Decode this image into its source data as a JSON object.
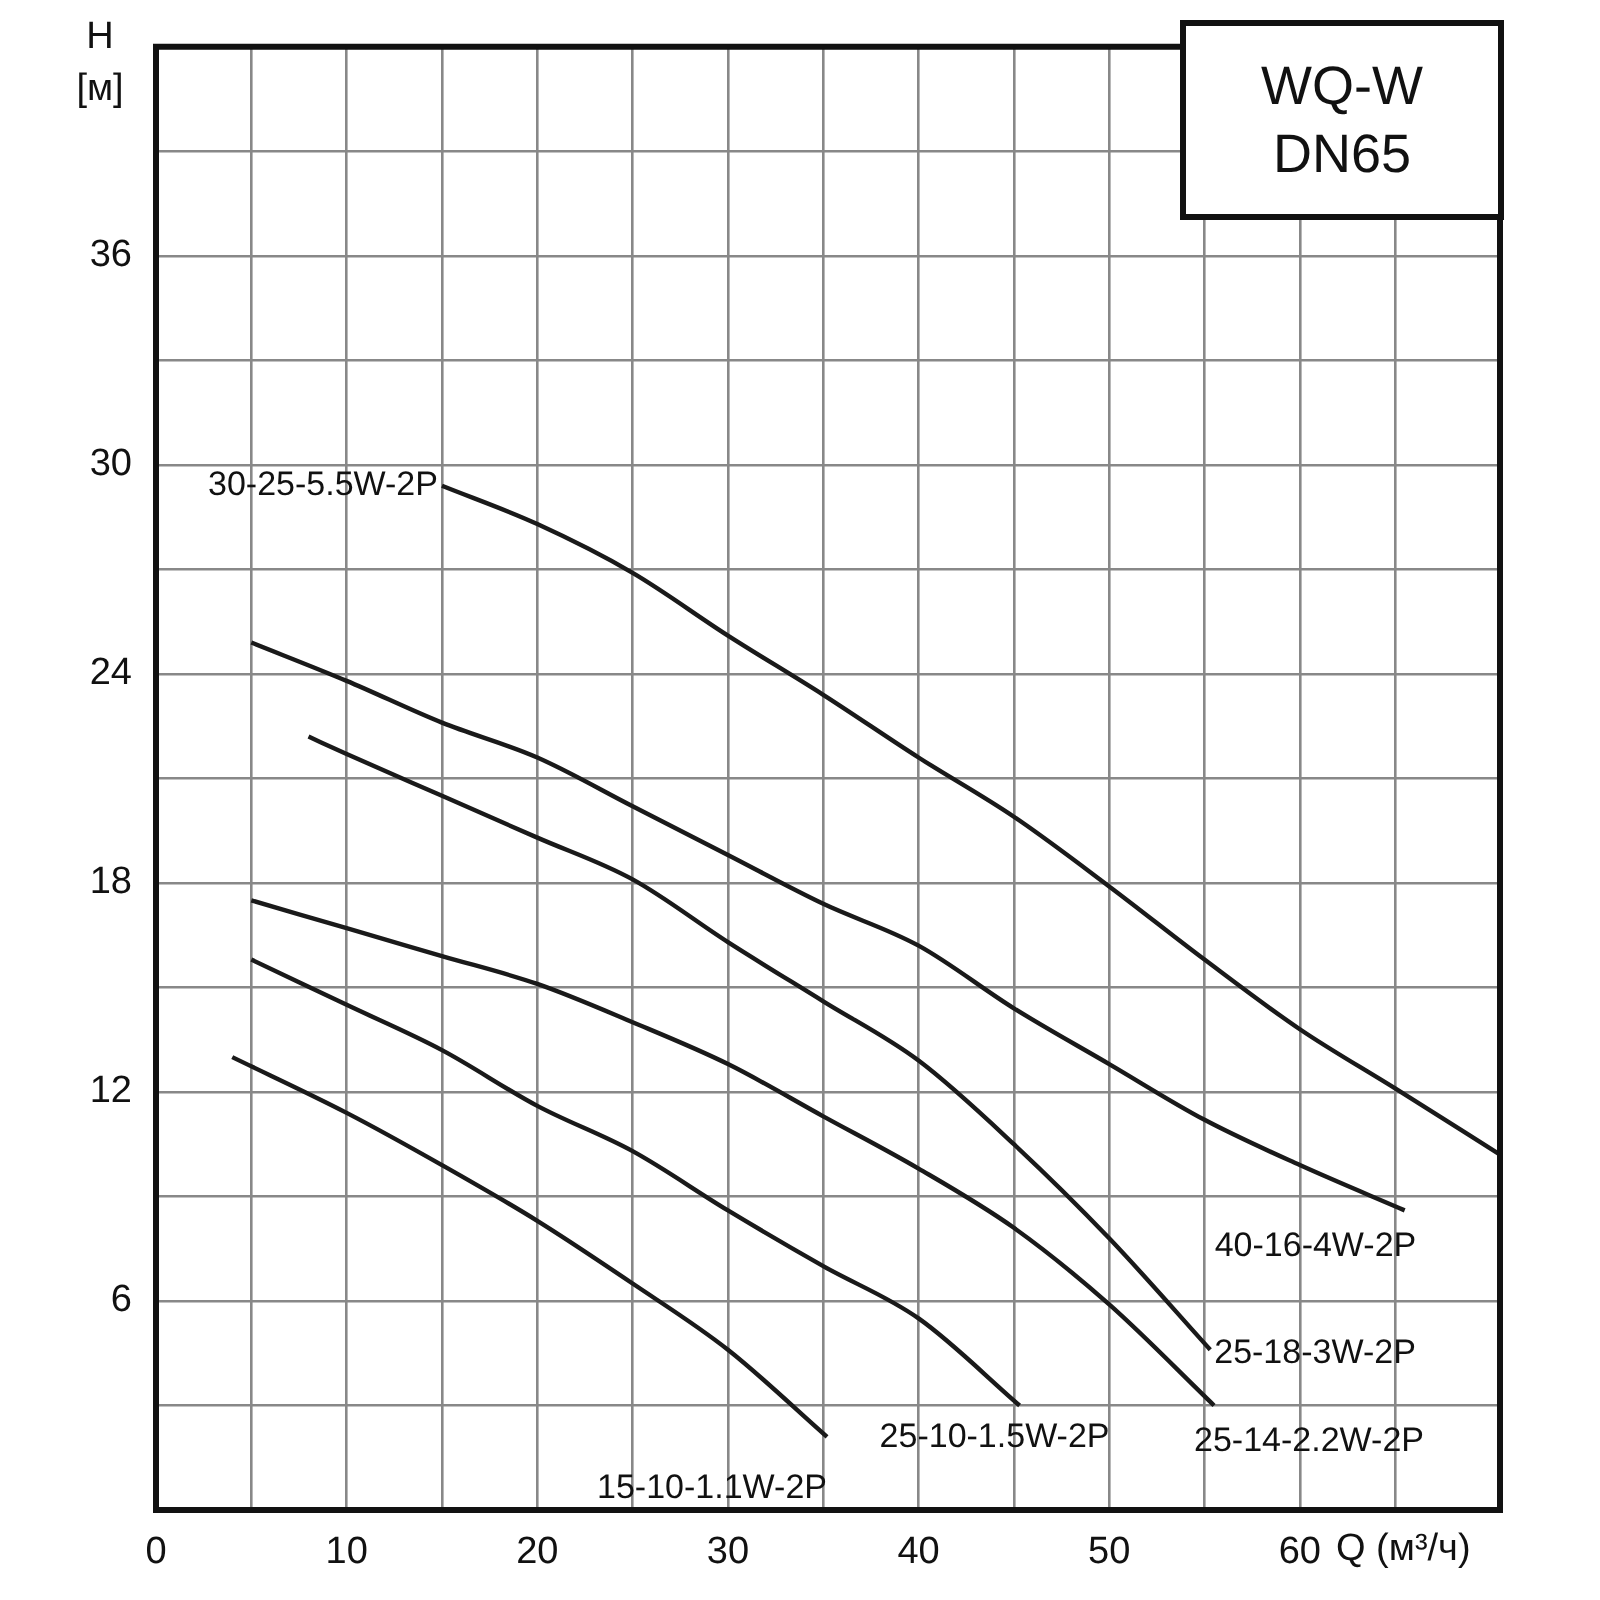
{
  "chart_data": {
    "type": "line",
    "title": "WQ-W",
    "subtitle": "DN65",
    "xlabel": "Q (м³/ч)",
    "ylabel": "H [м]",
    "xlim": [
      0,
      70.5
    ],
    "ylim": [
      0,
      42
    ],
    "xticks": [
      0,
      {
        "value": 5,
        "label": null
      },
      10,
      {
        "value": 15,
        "label": null
      },
      20,
      {
        "value": 25,
        "label": null
      },
      30,
      {
        "value": 35,
        "label": null
      },
      40,
      {
        "value": 45,
        "label": null
      },
      50,
      {
        "value": 55,
        "label": null
      },
      60,
      {
        "value": 65,
        "label": null
      }
    ],
    "yticks": [
      {
        "value": 3,
        "label": null
      },
      6,
      {
        "value": 9,
        "label": null
      },
      12,
      {
        "value": 15,
        "label": null
      },
      18,
      {
        "value": 21,
        "label": null
      },
      24,
      {
        "value": 27,
        "label": null
      },
      30,
      {
        "value": 33,
        "label": null
      },
      36,
      {
        "value": 39,
        "label": null
      }
    ],
    "grid": true,
    "marker": "none",
    "line_style": "solid",
    "series": [
      {
        "name": "30-25-5.5W-2P",
        "color": "#1a1a1a",
        "x": [
          15,
          20,
          25,
          30,
          35,
          40,
          45,
          50,
          55,
          60,
          65,
          70.5
        ],
        "values": [
          29.4,
          28.3,
          26.9,
          25.1,
          23.4,
          21.6,
          19.9,
          17.9,
          15.8,
          13.8,
          12.1,
          10.2
        ]
      },
      {
        "name": "40-16-4W-2P",
        "color": "#1a1a1a",
        "x": [
          5,
          10,
          15,
          20,
          25,
          30,
          35,
          40,
          45,
          50,
          55,
          60,
          65.5
        ],
        "values": [
          24.9,
          23.8,
          22.6,
          21.6,
          20.2,
          18.8,
          17.4,
          16.2,
          14.4,
          12.8,
          11.2,
          9.9,
          8.6
        ]
      },
      {
        "name": "25-18-3W-2P",
        "color": "#1a1a1a",
        "x": [
          8,
          10,
          15,
          20,
          25,
          30,
          35,
          40,
          45,
          50,
          55.3
        ],
        "values": [
          22.2,
          21.7,
          20.5,
          19.3,
          18.1,
          16.3,
          14.6,
          12.9,
          10.5,
          7.8,
          4.6
        ]
      },
      {
        "name": "25-14-2.2W-2P",
        "color": "#1a1a1a",
        "x": [
          5,
          10,
          15,
          20,
          25,
          30,
          35,
          40,
          45,
          50,
          55.5
        ],
        "values": [
          17.5,
          16.7,
          15.9,
          15.1,
          14.0,
          12.8,
          11.3,
          9.8,
          8.1,
          5.9,
          3.0
        ]
      },
      {
        "name": "25-10-1.5W-2P",
        "color": "#1a1a1a",
        "x": [
          5,
          10,
          15,
          20,
          25,
          30,
          35,
          40,
          45.3
        ],
        "values": [
          15.8,
          14.5,
          13.2,
          11.6,
          10.3,
          8.6,
          7.0,
          5.5,
          3.0
        ]
      },
      {
        "name": "15-10-1.1W-2P",
        "color": "#1a1a1a",
        "x": [
          4,
          10,
          15,
          20,
          25,
          30,
          35.2
        ],
        "values": [
          13.0,
          11.4,
          9.9,
          8.3,
          6.5,
          4.6,
          2.1
        ]
      }
    ]
  }
}
